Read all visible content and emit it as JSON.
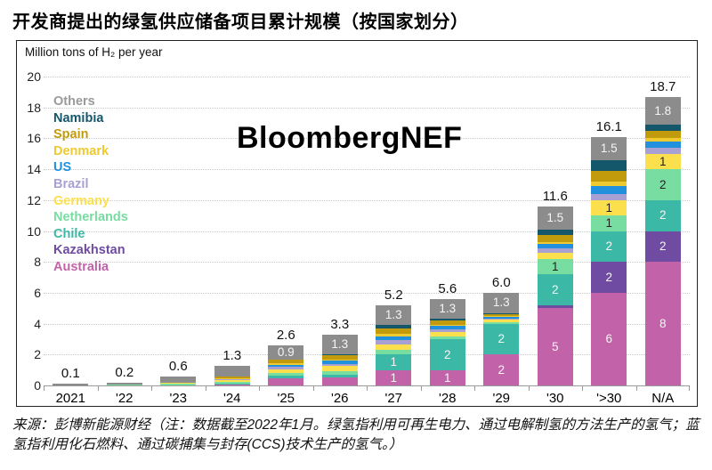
{
  "page": {
    "title": "开发商提出的绿氢供应储备项目累计规模（按国家划分）",
    "source_note": "来源：彭博新能源财经（注：数据截至2022年1月。绿氢指利用可再生电力、通过电解制氢的方法生产的氢气；蓝氢指利用化石燃料、通过碳捕集与封存(CCS)技术生产的氢气。）"
  },
  "chart_data": {
    "type": "bar",
    "stacked": true,
    "title": "开发商提出的绿氢供应储备项目累计规模（按国家划分）",
    "unit_label": "Million tons of H₂ per year",
    "watermark": "BloombergNEF",
    "ylabel": "Million tons of H₂ per year",
    "ylim": [
      0,
      20
    ],
    "ytick_step": 2,
    "grid": "horizontal-dotted",
    "legend_position": "overlay-top-left-colored-text",
    "legend_order_top_to_bottom": [
      "Others",
      "Namibia",
      "Spain",
      "Denmark",
      "US",
      "Brazil",
      "Germany",
      "Netherlands",
      "Chile",
      "Kazakhstan",
      "Australia"
    ],
    "stack_order_bottom_to_top": [
      "Australia",
      "Kazakhstan",
      "Chile",
      "Netherlands",
      "Germany",
      "Brazil",
      "US",
      "Denmark",
      "Spain",
      "Namibia",
      "Others"
    ],
    "series_colors": {
      "Others": "#8c8c8c",
      "Namibia": "#14576b",
      "Spain": "#c29b0c",
      "Denmark": "#eec92f",
      "US": "#2191dd",
      "Brazil": "#a89fd3",
      "Germany": "#fcdf4c",
      "Netherlands": "#78dda0",
      "Chile": "#3cb9a6",
      "Kazakhstan": "#6f4ba1",
      "Australia": "#c263a9"
    },
    "dark_text_series": [
      "Denmark",
      "Germany",
      "Netherlands"
    ],
    "categories": [
      "2021",
      "'22",
      "'23",
      "'24",
      "'25",
      "'26",
      "'27",
      "'28",
      "'29",
      "'30",
      "'>30",
      "N/A"
    ],
    "totals": [
      "0.1",
      "0.2",
      "0.6",
      "1.3",
      "2.6",
      "3.3",
      "5.2",
      "5.6",
      "6.0",
      "11.6",
      "16.1",
      "18.7"
    ],
    "bars": [
      {
        "category": "2021",
        "total": "0.1",
        "segments": [
          {
            "name": "Others",
            "value": 0.1
          }
        ]
      },
      {
        "category": "'22",
        "total": "0.2",
        "segments": [
          {
            "name": "Netherlands",
            "value": 0.06
          },
          {
            "name": "Others",
            "value": 0.14
          }
        ]
      },
      {
        "category": "'23",
        "total": "0.6",
        "segments": [
          {
            "name": "Netherlands",
            "value": 0.12
          },
          {
            "name": "Germany",
            "value": 0.06
          },
          {
            "name": "Others",
            "value": 0.42
          }
        ]
      },
      {
        "category": "'24",
        "total": "1.3",
        "segments": [
          {
            "name": "Australia",
            "value": 0.06
          },
          {
            "name": "Chile",
            "value": 0.06
          },
          {
            "name": "Netherlands",
            "value": 0.1
          },
          {
            "name": "Germany",
            "value": 0.12
          },
          {
            "name": "Brazil",
            "value": 0.06
          },
          {
            "name": "Denmark",
            "value": 0.06
          },
          {
            "name": "Spain",
            "value": 0.14
          },
          {
            "name": "Others",
            "value": 0.7
          }
        ]
      },
      {
        "category": "'25",
        "total": "2.6",
        "segments": [
          {
            "name": "Australia",
            "value": 0.45
          },
          {
            "name": "Chile",
            "value": 0.2
          },
          {
            "name": "Netherlands",
            "value": 0.15
          },
          {
            "name": "Germany",
            "value": 0.25
          },
          {
            "name": "Brazil",
            "value": 0.15
          },
          {
            "name": "US",
            "value": 0.15
          },
          {
            "name": "Denmark",
            "value": 0.1
          },
          {
            "name": "Spain",
            "value": 0.25
          },
          {
            "name": "Others",
            "value": 0.9,
            "label": "0.9"
          }
        ]
      },
      {
        "category": "'26",
        "total": "3.3",
        "segments": [
          {
            "name": "Australia",
            "value": 0.5
          },
          {
            "name": "Chile",
            "value": 0.2
          },
          {
            "name": "Netherlands",
            "value": 0.2
          },
          {
            "name": "Germany",
            "value": 0.35
          },
          {
            "name": "Brazil",
            "value": 0.15
          },
          {
            "name": "US",
            "value": 0.2
          },
          {
            "name": "Denmark",
            "value": 0.05
          },
          {
            "name": "Spain",
            "value": 0.3
          },
          {
            "name": "Namibia",
            "value": 0.05
          },
          {
            "name": "Others",
            "value": 1.3,
            "label": "1.3"
          }
        ]
      },
      {
        "category": "'27",
        "total": "5.2",
        "segments": [
          {
            "name": "Australia",
            "value": 1,
            "label": "1"
          },
          {
            "name": "Chile",
            "value": 1,
            "label": "1"
          },
          {
            "name": "Netherlands",
            "value": 0.3
          },
          {
            "name": "Germany",
            "value": 0.35
          },
          {
            "name": "Brazil",
            "value": 0.3
          },
          {
            "name": "US",
            "value": 0.25
          },
          {
            "name": "Denmark",
            "value": 0.15
          },
          {
            "name": "Spain",
            "value": 0.35
          },
          {
            "name": "Namibia",
            "value": 0.2
          },
          {
            "name": "Others",
            "value": 1.3,
            "label": "1.3"
          }
        ]
      },
      {
        "category": "'28",
        "total": "5.6",
        "segments": [
          {
            "name": "Australia",
            "value": 1,
            "label": "1"
          },
          {
            "name": "Chile",
            "value": 2,
            "label": "2"
          },
          {
            "name": "Netherlands",
            "value": 0.2
          },
          {
            "name": "Germany",
            "value": 0.25
          },
          {
            "name": "Brazil",
            "value": 0.2
          },
          {
            "name": "US",
            "value": 0.2
          },
          {
            "name": "Denmark",
            "value": 0.1
          },
          {
            "name": "Spain",
            "value": 0.25
          },
          {
            "name": "Namibia",
            "value": 0.1
          },
          {
            "name": "Others",
            "value": 1.3,
            "label": "1.3"
          }
        ]
      },
      {
        "category": "'29",
        "total": "6.0",
        "segments": [
          {
            "name": "Australia",
            "value": 2,
            "label": "2"
          },
          {
            "name": "Chile",
            "value": 2,
            "label": "2"
          },
          {
            "name": "Netherlands",
            "value": 0.1
          },
          {
            "name": "Germany",
            "value": 0.15
          },
          {
            "name": "Brazil",
            "value": 0.1
          },
          {
            "name": "US",
            "value": 0.1
          },
          {
            "name": "Denmark",
            "value": 0.05
          },
          {
            "name": "Spain",
            "value": 0.15
          },
          {
            "name": "Namibia",
            "value": 0.05
          },
          {
            "name": "Others",
            "value": 1.3,
            "label": "1.3"
          }
        ]
      },
      {
        "category": "'30",
        "total": "11.6",
        "segments": [
          {
            "name": "Australia",
            "value": 5,
            "label": "5"
          },
          {
            "name": "Kazakhstan",
            "value": 0.2
          },
          {
            "name": "Chile",
            "value": 2,
            "label": "2"
          },
          {
            "name": "Netherlands",
            "value": 1,
            "label": "1"
          },
          {
            "name": "Germany",
            "value": 0.4
          },
          {
            "name": "Brazil",
            "value": 0.25
          },
          {
            "name": "US",
            "value": 0.3
          },
          {
            "name": "Denmark",
            "value": 0.15
          },
          {
            "name": "Spain",
            "value": 0.45
          },
          {
            "name": "Namibia",
            "value": 0.35
          },
          {
            "name": "Others",
            "value": 1.5,
            "label": "1.5"
          }
        ]
      },
      {
        "category": "'>30",
        "total": "16.1",
        "segments": [
          {
            "name": "Australia",
            "value": 6,
            "label": "6"
          },
          {
            "name": "Kazakhstan",
            "value": 2,
            "label": "2"
          },
          {
            "name": "Chile",
            "value": 2,
            "label": "2"
          },
          {
            "name": "Netherlands",
            "value": 1,
            "label": "1"
          },
          {
            "name": "Germany",
            "value": 1,
            "label": "1"
          },
          {
            "name": "Brazil",
            "value": 0.4
          },
          {
            "name": "US",
            "value": 0.5
          },
          {
            "name": "Denmark",
            "value": 0.3
          },
          {
            "name": "Spain",
            "value": 0.7
          },
          {
            "name": "Namibia",
            "value": 0.7
          },
          {
            "name": "Others",
            "value": 1.5,
            "label": "1.5"
          }
        ]
      },
      {
        "category": "N/A",
        "total": "18.7",
        "segments": [
          {
            "name": "Australia",
            "value": 8,
            "label": "8"
          },
          {
            "name": "Kazakhstan",
            "value": 2,
            "label": "2"
          },
          {
            "name": "Chile",
            "value": 2,
            "label": "2"
          },
          {
            "name": "Netherlands",
            "value": 2,
            "label": "2"
          },
          {
            "name": "Germany",
            "value": 1,
            "label": "1"
          },
          {
            "name": "Brazil",
            "value": 0.4
          },
          {
            "name": "US",
            "value": 0.4
          },
          {
            "name": "Denmark",
            "value": 0.25
          },
          {
            "name": "Spain",
            "value": 0.45
          },
          {
            "name": "Namibia",
            "value": 0.4
          },
          {
            "name": "Others",
            "value": 1.8,
            "label": "1.8"
          }
        ]
      }
    ]
  }
}
